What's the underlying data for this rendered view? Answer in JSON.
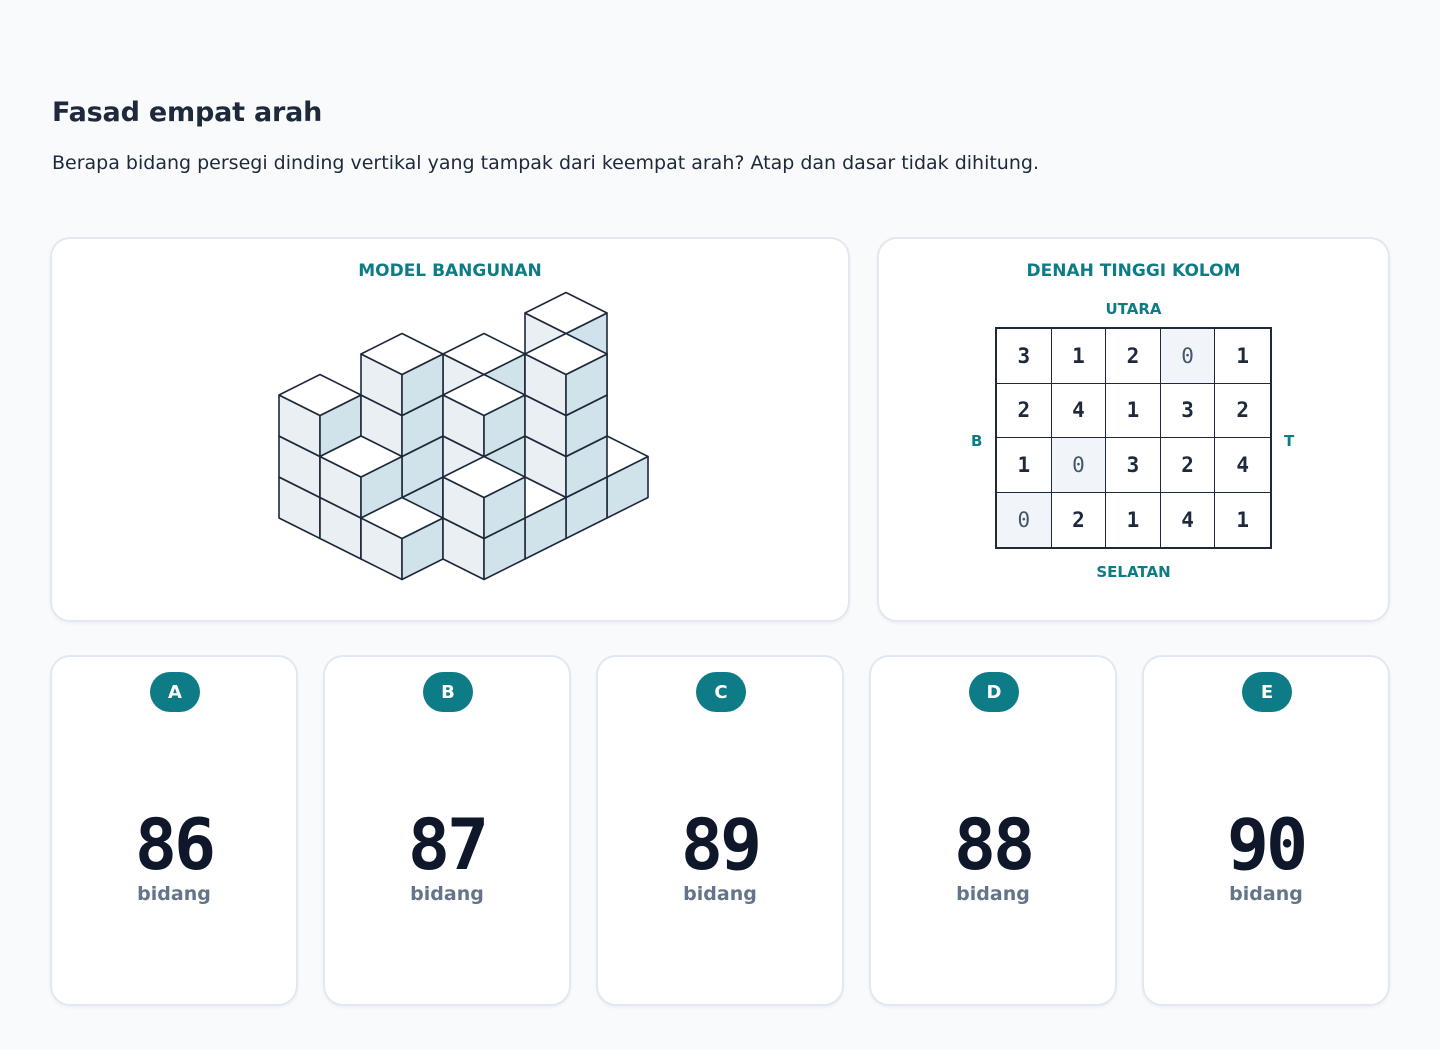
{
  "header": {
    "title": "Fasad empat arah",
    "subtitle": "Berapa bidang persegi dinding vertikal yang tampak dari keempat arah? Atap dan dasar tidak dihitung."
  },
  "model_panel": {
    "heading": "MODEL BANGUNAN"
  },
  "plan_panel": {
    "heading": "DENAH TINGGI KOLOM",
    "north": "UTARA",
    "south": "SELATAN",
    "west": "B",
    "east": "T",
    "rows": [
      [
        "3",
        "1",
        "2",
        "0",
        "1"
      ],
      [
        "2",
        "4",
        "1",
        "3",
        "2"
      ],
      [
        "1",
        "0",
        "3",
        "2",
        "4"
      ],
      [
        "0",
        "2",
        "1",
        "4",
        "1"
      ]
    ]
  },
  "options": [
    {
      "letter": "A",
      "value": "86",
      "unit": "bidang"
    },
    {
      "letter": "B",
      "value": "87",
      "unit": "bidang"
    },
    {
      "letter": "C",
      "value": "89",
      "unit": "bidang"
    },
    {
      "letter": "D",
      "value": "88",
      "unit": "bidang"
    },
    {
      "letter": "E",
      "value": "90",
      "unit": "bidang"
    }
  ],
  "colors": {
    "accent": "#0e7c86",
    "cube_left_face": "#e9eff3",
    "cube_right_face": "#d1e3ea",
    "cube_top_face": "#ffffff",
    "zero_cell": "#f1f5f9"
  }
}
